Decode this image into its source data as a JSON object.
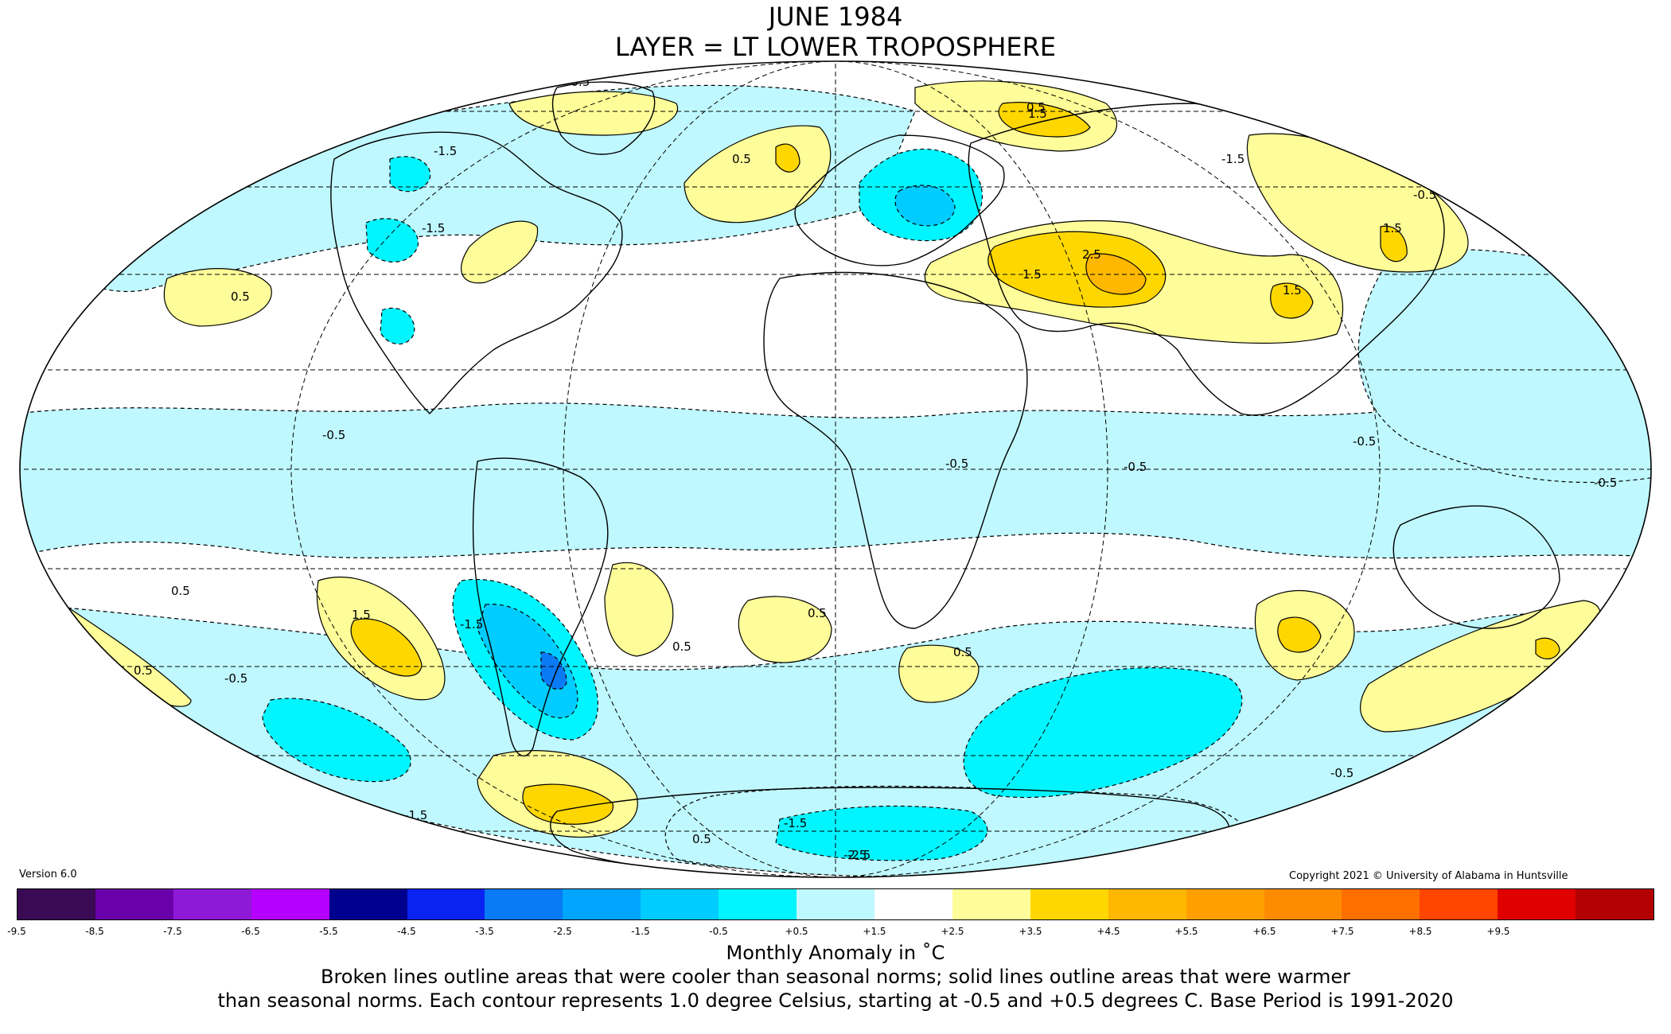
{
  "title": {
    "line1": "JUNE 1984",
    "line2": "LAYER = LT LOWER TROPOSPHERE"
  },
  "version": "Version 6.0",
  "copyright": "Copyright 2021 © University of Alabama in Huntsville",
  "colors": {
    "ocean_neutral": "#ffffff",
    "light_cyan": "#bff8ff",
    "cyan": "#00f5ff",
    "sky": "#00ccff",
    "blue": "#0a7af5",
    "light_yellow": "#fffd99",
    "gold": "#ffd700",
    "orange": "#ffb100"
  },
  "colorbar": {
    "colors": [
      "#3b0a55",
      "#6a00aa",
      "#8e1ad6",
      "#b500ff",
      "#00008f",
      "#0a23f0",
      "#0a7af5",
      "#00a5ff",
      "#00ccff",
      "#00f5ff",
      "#bff8ff",
      "#ffffff",
      "#fffd99",
      "#ffd700",
      "#ffb700",
      "#ffa000",
      "#ff8c00",
      "#ff6f00",
      "#ff4500",
      "#e00000",
      "#b30000"
    ],
    "tick_labels": [
      "-9.5",
      "-8.5",
      "-7.5",
      "-6.5",
      "-5.5",
      "-4.5",
      "-3.5",
      "-2.5",
      "-1.5",
      "-0.5",
      "+0.5",
      "+1.5",
      "+2.5",
      "+3.5",
      "+4.5",
      "+5.5",
      "+6.5",
      "+7.5",
      "+8.5",
      "+9.5"
    ],
    "unit_label": "Monthly Anomaly in ˚C"
  },
  "note": {
    "line1": "Broken lines outline areas that were cooler than seasonal norms; solid lines outline areas that were warmer",
    "line2": "than seasonal norms. Each contour represents 1.0 degree Celsius, starting at -0.5 and +0.5 degrees C. Base Period is 1991-2020"
  },
  "contour_labels": [
    "-0.5",
    "0.5",
    "-1.5",
    "1.5",
    "-2.5",
    "2.5",
    "-0.5",
    "0.5",
    "-1.5",
    "1.5",
    "-0.5",
    "0.5",
    "1.5",
    "-1.5",
    "-2.5",
    "1.5",
    "0.5",
    "-0.5",
    "0.5",
    "-0.5",
    "-0.5",
    "-0.5",
    "0.5",
    "0.5",
    "-1.5",
    "-1.5",
    "-0.5",
    "1.5",
    "-1.5",
    "0.5",
    "0.5",
    "-0.5"
  ]
}
